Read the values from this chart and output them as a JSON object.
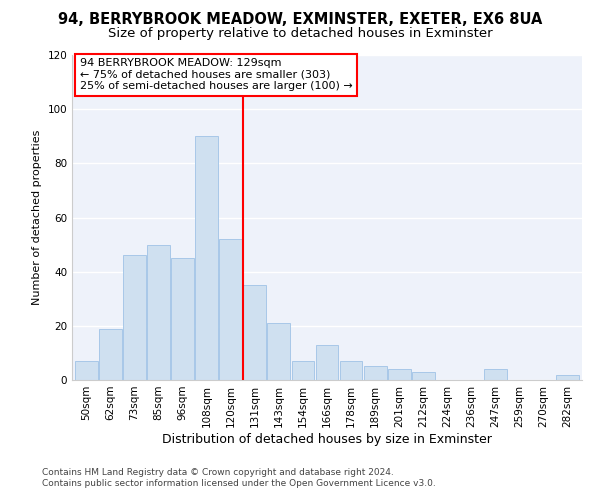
{
  "title": "94, BERRYBROOK MEADOW, EXMINSTER, EXETER, EX6 8UA",
  "subtitle": "Size of property relative to detached houses in Exminster",
  "xlabel": "Distribution of detached houses by size in Exminster",
  "ylabel": "Number of detached properties",
  "bar_color": "#cfe0f0",
  "bar_edge_color": "#a8c8e8",
  "background_color": "#eef2fa",
  "fig_background": "#ffffff",
  "categories": [
    "50sqm",
    "62sqm",
    "73sqm",
    "85sqm",
    "96sqm",
    "108sqm",
    "120sqm",
    "131sqm",
    "143sqm",
    "154sqm",
    "166sqm",
    "178sqm",
    "189sqm",
    "201sqm",
    "212sqm",
    "224sqm",
    "236sqm",
    "247sqm",
    "259sqm",
    "270sqm",
    "282sqm"
  ],
  "values": [
    7,
    19,
    46,
    50,
    45,
    90,
    52,
    35,
    21,
    7,
    13,
    7,
    5,
    4,
    3,
    0,
    0,
    4,
    0,
    0,
    2
  ],
  "ylim": [
    0,
    120
  ],
  "yticks": [
    0,
    20,
    40,
    60,
    80,
    100,
    120
  ],
  "property_line_x": 6.5,
  "property_line_label": "94 BERRYBROOK MEADOW: 129sqm",
  "annotation_line1": "← 75% of detached houses are smaller (303)",
  "annotation_line2": "25% of semi-detached houses are larger (100) →",
  "footer_line1": "Contains HM Land Registry data © Crown copyright and database right 2024.",
  "footer_line2": "Contains public sector information licensed under the Open Government Licence v3.0.",
  "title_fontsize": 10.5,
  "subtitle_fontsize": 9.5,
  "xlabel_fontsize": 9,
  "ylabel_fontsize": 8,
  "tick_fontsize": 7.5,
  "annotation_fontsize": 8,
  "footer_fontsize": 6.5
}
